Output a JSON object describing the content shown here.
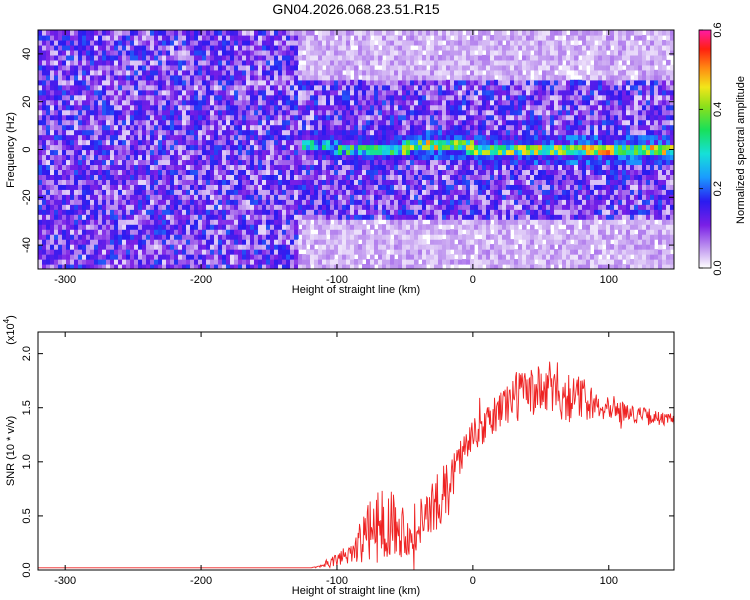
{
  "title": "GN04.2026.068.23.51.R15",
  "chart_data": [
    {
      "type": "heatmap",
      "xlabel": "Height of straight line (km)",
      "ylabel": "Frequency (Hz)",
      "xlim": [
        -320,
        148
      ],
      "ylim": [
        -50,
        50
      ],
      "xticks": [
        -300,
        -200,
        -100,
        0,
        100
      ],
      "xtick_labels": [
        "-300",
        "-200",
        "-100",
        "0",
        "100"
      ],
      "yticks": [
        -40,
        -20,
        0,
        20,
        40
      ],
      "ytick_labels": [
        "-40",
        "-20",
        "0",
        "20",
        "40"
      ],
      "colorbar": {
        "label": "Normalized spectral amplitude",
        "range": [
          0.0,
          0.6
        ],
        "ticks": [
          0.0,
          0.2,
          0.4,
          0.6
        ],
        "tick_labels": [
          "0.0",
          "0.2",
          "0.4",
          "0.6"
        ]
      },
      "regions": [
        {
          "x_from": -320,
          "x_to": -130,
          "freq_from": -50,
          "freq_to": 50,
          "level": 0.12
        },
        {
          "x_from": -130,
          "x_to": 148,
          "freq_from": -30,
          "freq_to": 30,
          "level": 0.12
        },
        {
          "x_from": -130,
          "x_to": 148,
          "freq_from": -50,
          "freq_to": 50,
          "level": 0.04
        }
      ],
      "ridge": {
        "x": [
          -125,
          -100,
          -75,
          -50,
          -25,
          0,
          25,
          50,
          75,
          100,
          125,
          148
        ],
        "freq": [
          3,
          1,
          0,
          1,
          2,
          1,
          0,
          0,
          0,
          0,
          0,
          0
        ],
        "level": [
          0.25,
          0.3,
          0.32,
          0.35,
          0.4,
          0.38,
          0.36,
          0.38,
          0.4,
          0.42,
          0.4,
          0.38
        ]
      },
      "grid": false
    },
    {
      "type": "line",
      "xlabel": "Height of straight line (km)",
      "ylabel": "SNR (10 * v/v)",
      "yscale_label": "(x10",
      "yscale_exp": "4",
      "yscale_close": ")",
      "xlim": [
        -320,
        148
      ],
      "ylim": [
        0,
        2.2
      ],
      "xticks": [
        -300,
        -200,
        -100,
        0,
        100
      ],
      "xtick_labels": [
        "-300",
        "-200",
        "-100",
        "0",
        "100"
      ],
      "yticks": [
        0.0,
        0.5,
        1.0,
        1.5,
        2.0
      ],
      "ytick_labels": [
        "0.0",
        "0.5",
        "1.0",
        "1.5",
        "2.0"
      ],
      "series": [
        {
          "color": "#ee2222",
          "x": [
            -320,
            -250,
            -200,
            -150,
            -120,
            -110,
            -100,
            -90,
            -80,
            -70,
            -60,
            -50,
            -40,
            -30,
            -20,
            -10,
            0,
            10,
            20,
            30,
            40,
            50,
            60,
            70,
            80,
            90,
            100,
            110,
            120,
            130,
            140,
            148
          ],
          "y": [
            0.02,
            0.02,
            0.02,
            0.02,
            0.02,
            0.03,
            0.08,
            0.15,
            0.25,
            0.35,
            0.4,
            0.3,
            0.35,
            0.5,
            0.7,
            1.0,
            1.2,
            1.3,
            1.45,
            1.55,
            1.6,
            1.6,
            1.62,
            1.55,
            1.55,
            1.5,
            1.5,
            1.45,
            1.42,
            1.4,
            1.38,
            1.37
          ],
          "amp": [
            0.0,
            0.0,
            0.0,
            0.0,
            0.0,
            0.02,
            0.08,
            0.15,
            0.3,
            0.45,
            0.4,
            0.3,
            0.3,
            0.35,
            0.3,
            0.25,
            0.2,
            0.2,
            0.25,
            0.3,
            0.3,
            0.3,
            0.35,
            0.3,
            0.25,
            0.2,
            0.15,
            0.12,
            0.1,
            0.1,
            0.08,
            0.08
          ]
        }
      ],
      "grid": false
    }
  ]
}
